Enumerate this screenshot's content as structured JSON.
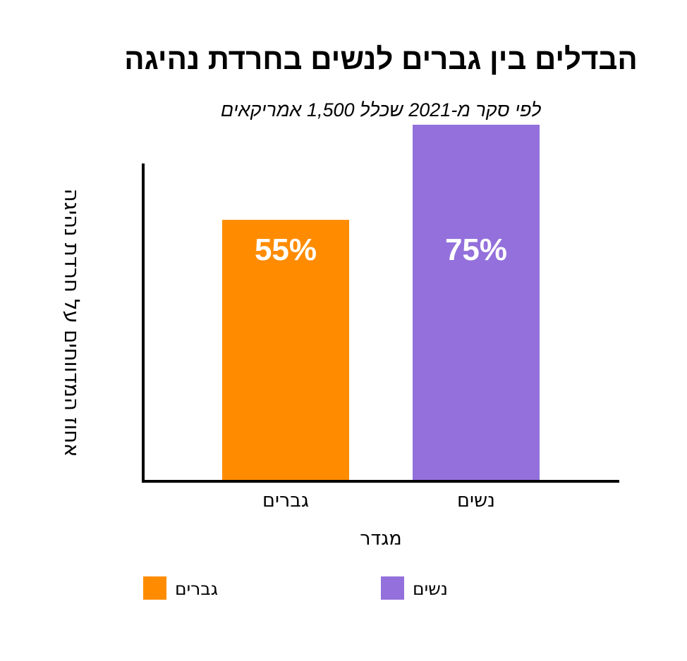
{
  "chart_data": {
    "type": "bar",
    "title": "הבדלים בין גברים לנשים בחרדת נהיגה",
    "subtitle": "לפי סקר מ-2021 שכלל 1,500 אמריקאים",
    "xlabel": "מגדר",
    "ylabel": "אחוז המדווחים על חרדת נהיגה",
    "categories": [
      "גברים",
      "נשים"
    ],
    "values": [
      55,
      75
    ],
    "data_labels": [
      "55%",
      "75%"
    ],
    "colors": [
      "#ff8c00",
      "#9370db"
    ],
    "ylim": [
      0,
      75
    ],
    "grid": false,
    "legend": {
      "position": "bottom",
      "items": [
        {
          "label": "גברים",
          "color": "#ff8c00"
        },
        {
          "label": "נשים",
          "color": "#9370db"
        }
      ]
    }
  }
}
